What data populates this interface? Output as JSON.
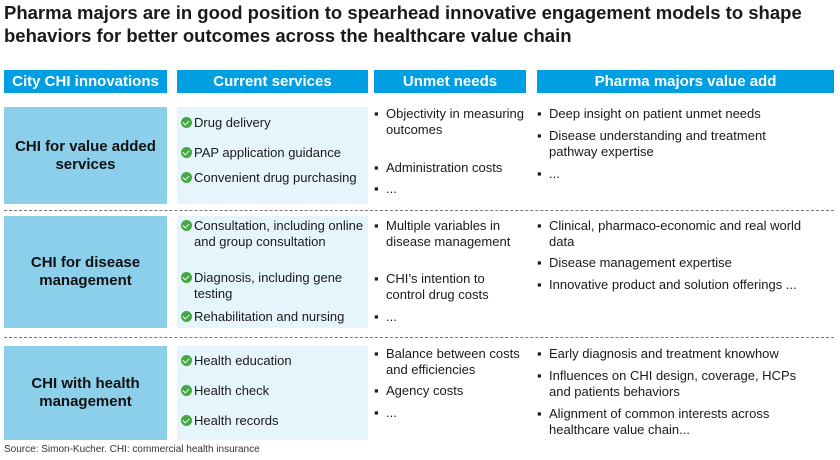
{
  "title": "Pharma majors are in good position to spearhead innovative engagement models to shape behaviors for better outcomes across the healthcare value chain",
  "headers": {
    "col1": "City CHI innovations",
    "col2": "Current services",
    "col3": "Unmet needs",
    "col4": "Pharma majors value add"
  },
  "rows": [
    {
      "label": "CHI for value added services",
      "services": [
        "Drug delivery",
        "PAP application guidance",
        "Convenient drug purchasing"
      ],
      "needs": [
        "Objectivity in measuring outcomes",
        "Administration costs",
        "..."
      ],
      "value_add": [
        "Deep insight on patient unmet needs",
        "Disease understanding and treatment pathway expertise",
        "..."
      ]
    },
    {
      "label": "CHI for disease management",
      "services": [
        "Consultation, including online and group consultation",
        "Diagnosis, including gene testing",
        "Rehabilitation and nursing"
      ],
      "needs": [
        "Multiple variables in disease management",
        "CHI’s intention to control drug costs",
        "..."
      ],
      "value_add": [
        "Clinical, pharmaco-economic and real world data",
        "Disease management expertise",
        "Innovative product and solution offerings ..."
      ]
    },
    {
      "label": "CHI with health management",
      "services": [
        "Health education",
        "Health check",
        "Health records"
      ],
      "needs": [
        "Balance between costs and efficiencies",
        "Agency costs",
        "..."
      ],
      "value_add": [
        "Early diagnosis and treatment knowhow",
        "Influences on CHI design, coverage, HCPs and patients behaviors",
        "Alignment of common interests across healthcare value chain..."
      ]
    }
  ],
  "footer": "Source: Simon-Kucher. CHI: commercial health insurance",
  "colors": {
    "header_blue": "#009fe3",
    "label_blue": "#8ccfeb",
    "service_bg": "#e6f4fb",
    "check_green": "#44a843"
  }
}
